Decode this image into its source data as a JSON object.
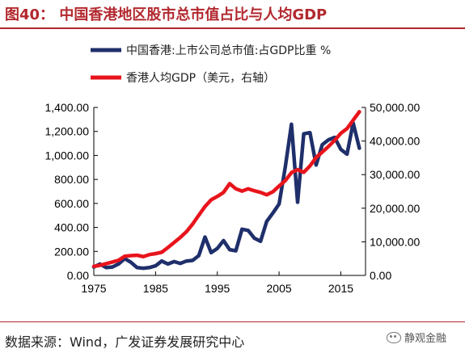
{
  "title": "图40：  中国香港地区股市总市值占比与人均GDP",
  "source": "数据来源：Wind，广发证券发展研究中心",
  "watermark": "静观金融",
  "colors": {
    "title": "#b2282e",
    "series_market_cap": "#1f2f6b",
    "series_gdp": "#e8141c"
  },
  "chart_data": {
    "type": "line",
    "title": "",
    "xlabel": "",
    "ylabel": "",
    "ylabel_right": "",
    "xlim": [
      1975,
      2019
    ],
    "ylim": [
      0,
      1400
    ],
    "ylim_right": [
      0,
      50000
    ],
    "x_ticks": [
      1975,
      1985,
      1995,
      2005,
      2015
    ],
    "x_tick_labels": [
      "1975",
      "1985",
      "1995",
      "2005",
      "2015"
    ],
    "y_ticks": [
      0,
      200,
      400,
      600,
      800,
      1000,
      1200,
      1400
    ],
    "y_tick_labels": [
      "0.00",
      "200.00",
      "400.00",
      "600.00",
      "800.00",
      "1,000.00",
      "1,200.00",
      "1,400.00"
    ],
    "y_ticks_right": [
      0,
      10000,
      20000,
      30000,
      40000,
      50000
    ],
    "y_tick_labels_right": [
      "0.00",
      "10,000.00",
      "20,000.00",
      "30,000.00",
      "40,000.00",
      "50,000.00"
    ],
    "legend_position": "top-left",
    "grid": false,
    "series": [
      {
        "name": "中国香港:上市公司总市值:占GDP比重 %",
        "axis": "left",
        "x": [
          1975,
          1976,
          1977,
          1978,
          1979,
          1980,
          1981,
          1982,
          1983,
          1984,
          1985,
          1986,
          1987,
          1988,
          1989,
          1990,
          1991,
          1992,
          1993,
          1994,
          1995,
          1996,
          1997,
          1998,
          1999,
          2000,
          2001,
          2002,
          2003,
          2004,
          2005,
          2006,
          2007,
          2008,
          2009,
          2010,
          2011,
          2012,
          2013,
          2014,
          2015,
          2016,
          2017,
          2018
        ],
        "values": [
          70,
          95,
          65,
          70,
          95,
          140,
          110,
          65,
          60,
          65,
          80,
          120,
          95,
          115,
          100,
          120,
          125,
          165,
          320,
          190,
          225,
          290,
          215,
          205,
          385,
          375,
          310,
          285,
          450,
          520,
          595,
          900,
          1260,
          610,
          1180,
          1190,
          920,
          1090,
          1130,
          1150,
          1050,
          1010,
          1270,
          1060
        ]
      },
      {
        "name": "香港人均GDP（美元，右轴）",
        "axis": "right",
        "x": [
          1975,
          1976,
          1977,
          1978,
          1979,
          1980,
          1981,
          1982,
          1983,
          1984,
          1985,
          1986,
          1987,
          1988,
          1989,
          1990,
          1991,
          1992,
          1993,
          1994,
          1995,
          1996,
          1997,
          1998,
          1999,
          2000,
          2001,
          2002,
          2003,
          2004,
          2005,
          2006,
          2007,
          2008,
          2009,
          2010,
          2011,
          2012,
          2013,
          2014,
          2015,
          2016,
          2017,
          2018
        ],
        "values": [
          2700,
          3000,
          3500,
          4000,
          4500,
          5700,
          5900,
          6000,
          5600,
          6200,
          6500,
          6900,
          8300,
          9800,
          11300,
          13000,
          15300,
          17900,
          20500,
          22500,
          23500,
          24700,
          27300,
          25800,
          25100,
          25800,
          25200,
          24700,
          24000,
          24900,
          26600,
          28200,
          30600,
          31500,
          30700,
          32600,
          35100,
          36700,
          38400,
          40200,
          42300,
          43700,
          46200,
          48700
        ]
      }
    ]
  }
}
